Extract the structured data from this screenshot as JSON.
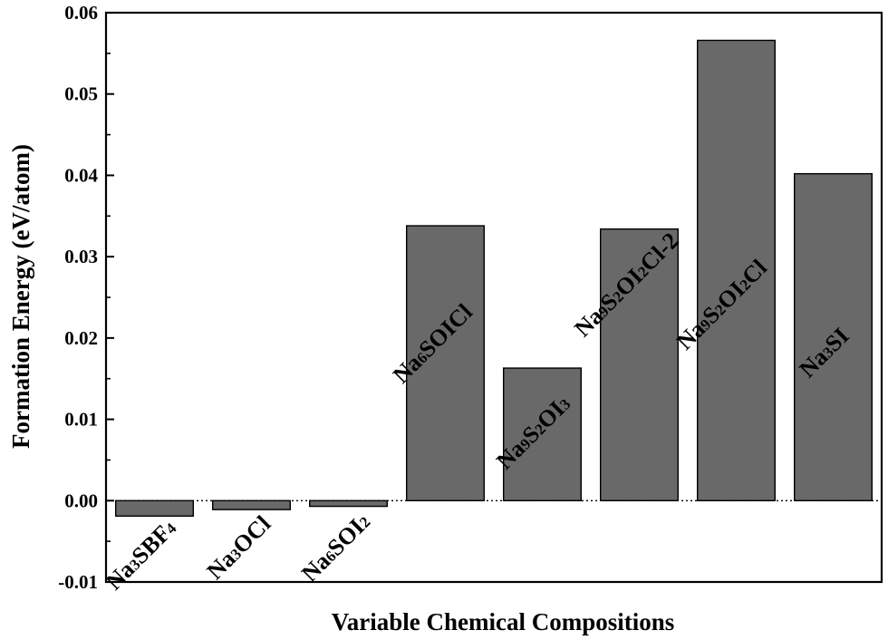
{
  "chart_data": {
    "type": "bar",
    "xlabel": "Variable Chemical Compositions",
    "ylabel": "Formation Energy (eV/atom)",
    "ylim": [
      -0.01,
      0.06
    ],
    "yticks": [
      "-0.01",
      "0.00",
      "0.01",
      "0.02",
      "0.03",
      "0.04",
      "0.05",
      "0.06"
    ],
    "reference_line": 0,
    "categories": [
      {
        "label": "Na3SBF4",
        "parts": [
          [
            "Na",
            false
          ],
          [
            "3",
            true
          ],
          [
            "SBF",
            false
          ],
          [
            "4",
            true
          ]
        ]
      },
      {
        "label": "Na3OCl",
        "parts": [
          [
            "Na",
            false
          ],
          [
            "3",
            true
          ],
          [
            "OCl",
            false
          ]
        ]
      },
      {
        "label": "Na6SOI2",
        "parts": [
          [
            "Na",
            false
          ],
          [
            "6",
            true
          ],
          [
            "SOI",
            false
          ],
          [
            "2",
            true
          ]
        ]
      },
      {
        "label": "Na6SOICl",
        "parts": [
          [
            "Na",
            false
          ],
          [
            "6",
            true
          ],
          [
            "SOICl",
            false
          ]
        ]
      },
      {
        "label": "Na9S2OI3",
        "parts": [
          [
            "Na",
            false
          ],
          [
            "9",
            true
          ],
          [
            "S",
            false
          ],
          [
            "2",
            true
          ],
          [
            "OI",
            false
          ],
          [
            "3",
            true
          ]
        ]
      },
      {
        "label": "Na9S2OI2Cl-2",
        "parts": [
          [
            "Na",
            false
          ],
          [
            "9",
            true
          ],
          [
            "S",
            false
          ],
          [
            "2",
            true
          ],
          [
            "OI",
            false
          ],
          [
            "2",
            true
          ],
          [
            "Cl-2",
            false
          ]
        ]
      },
      {
        "label": "Na9S2OI2Cl",
        "parts": [
          [
            "Na",
            false
          ],
          [
            "9",
            true
          ],
          [
            "S",
            false
          ],
          [
            "2",
            true
          ],
          [
            "OI",
            false
          ],
          [
            "2",
            true
          ],
          [
            "Cl",
            false
          ]
        ]
      },
      {
        "label": "Na3SI",
        "parts": [
          [
            "Na",
            false
          ],
          [
            "3",
            true
          ],
          [
            "SI",
            false
          ]
        ]
      }
    ],
    "values": [
      -0.0019,
      -0.0011,
      -0.0007,
      0.0338,
      0.0163,
      0.0334,
      0.0566,
      0.0402
    ],
    "bar_color": "#696969",
    "grid": false,
    "legend": "none"
  }
}
